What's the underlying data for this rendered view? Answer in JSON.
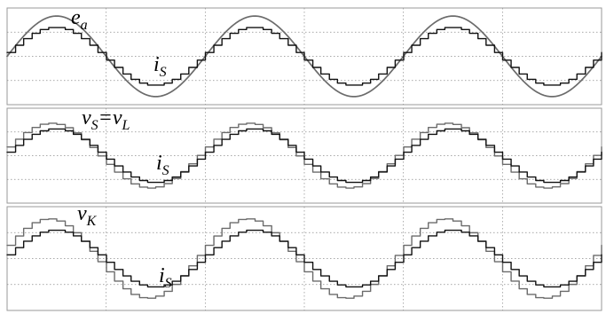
{
  "chart_data": [
    {
      "type": "line",
      "x_range": [
        0,
        3
      ],
      "ylim": [
        -1.2,
        1.2
      ],
      "grid": true,
      "series": [
        {
          "label": {
            "main": "e",
            "sub": "a"
          },
          "waveform": "sine",
          "amplitude": 1.0,
          "cycles": 3,
          "phase_deg": 0,
          "color": "#6b6b6b"
        },
        {
          "label": {
            "main": "i",
            "sub": "S"
          },
          "waveform": "staircase-sine",
          "amplitude": 0.72,
          "cycles": 3,
          "phase_deg": 0,
          "steps_per_cycle": 24,
          "color": "#111111"
        }
      ]
    },
    {
      "type": "line",
      "x_range": [
        0,
        3
      ],
      "ylim": [
        -1.2,
        1.2
      ],
      "grid": true,
      "series": [
        {
          "label": {
            "main": "v",
            "sub": "S",
            "eq": "=",
            "main2": "v",
            "sub2": "L"
          },
          "waveform": "staircase-sine",
          "amplitude": 0.82,
          "cycles": 3,
          "phase_deg": 8,
          "steps_per_cycle": 24,
          "color": "#6b6b6b"
        },
        {
          "label": {
            "main": "i",
            "sub": "S"
          },
          "waveform": "staircase-sine",
          "amplitude": 0.68,
          "cycles": 3,
          "phase_deg": 0,
          "steps_per_cycle": 24,
          "color": "#111111"
        }
      ]
    },
    {
      "type": "line",
      "x_range": [
        0,
        3
      ],
      "ylim": [
        -1.2,
        1.2
      ],
      "grid": true,
      "series": [
        {
          "label": {
            "main": "v",
            "sub": "K"
          },
          "waveform": "staircase-sine",
          "amplitude": 0.92,
          "cycles": 3,
          "phase_deg": 12,
          "steps_per_cycle": 24,
          "color": "#6b6b6b"
        },
        {
          "label": {
            "main": "i",
            "sub": "S"
          },
          "waveform": "staircase-sine",
          "amplitude": 0.66,
          "cycles": 3,
          "phase_deg": 0,
          "steps_per_cycle": 24,
          "color": "#111111"
        }
      ]
    }
  ]
}
